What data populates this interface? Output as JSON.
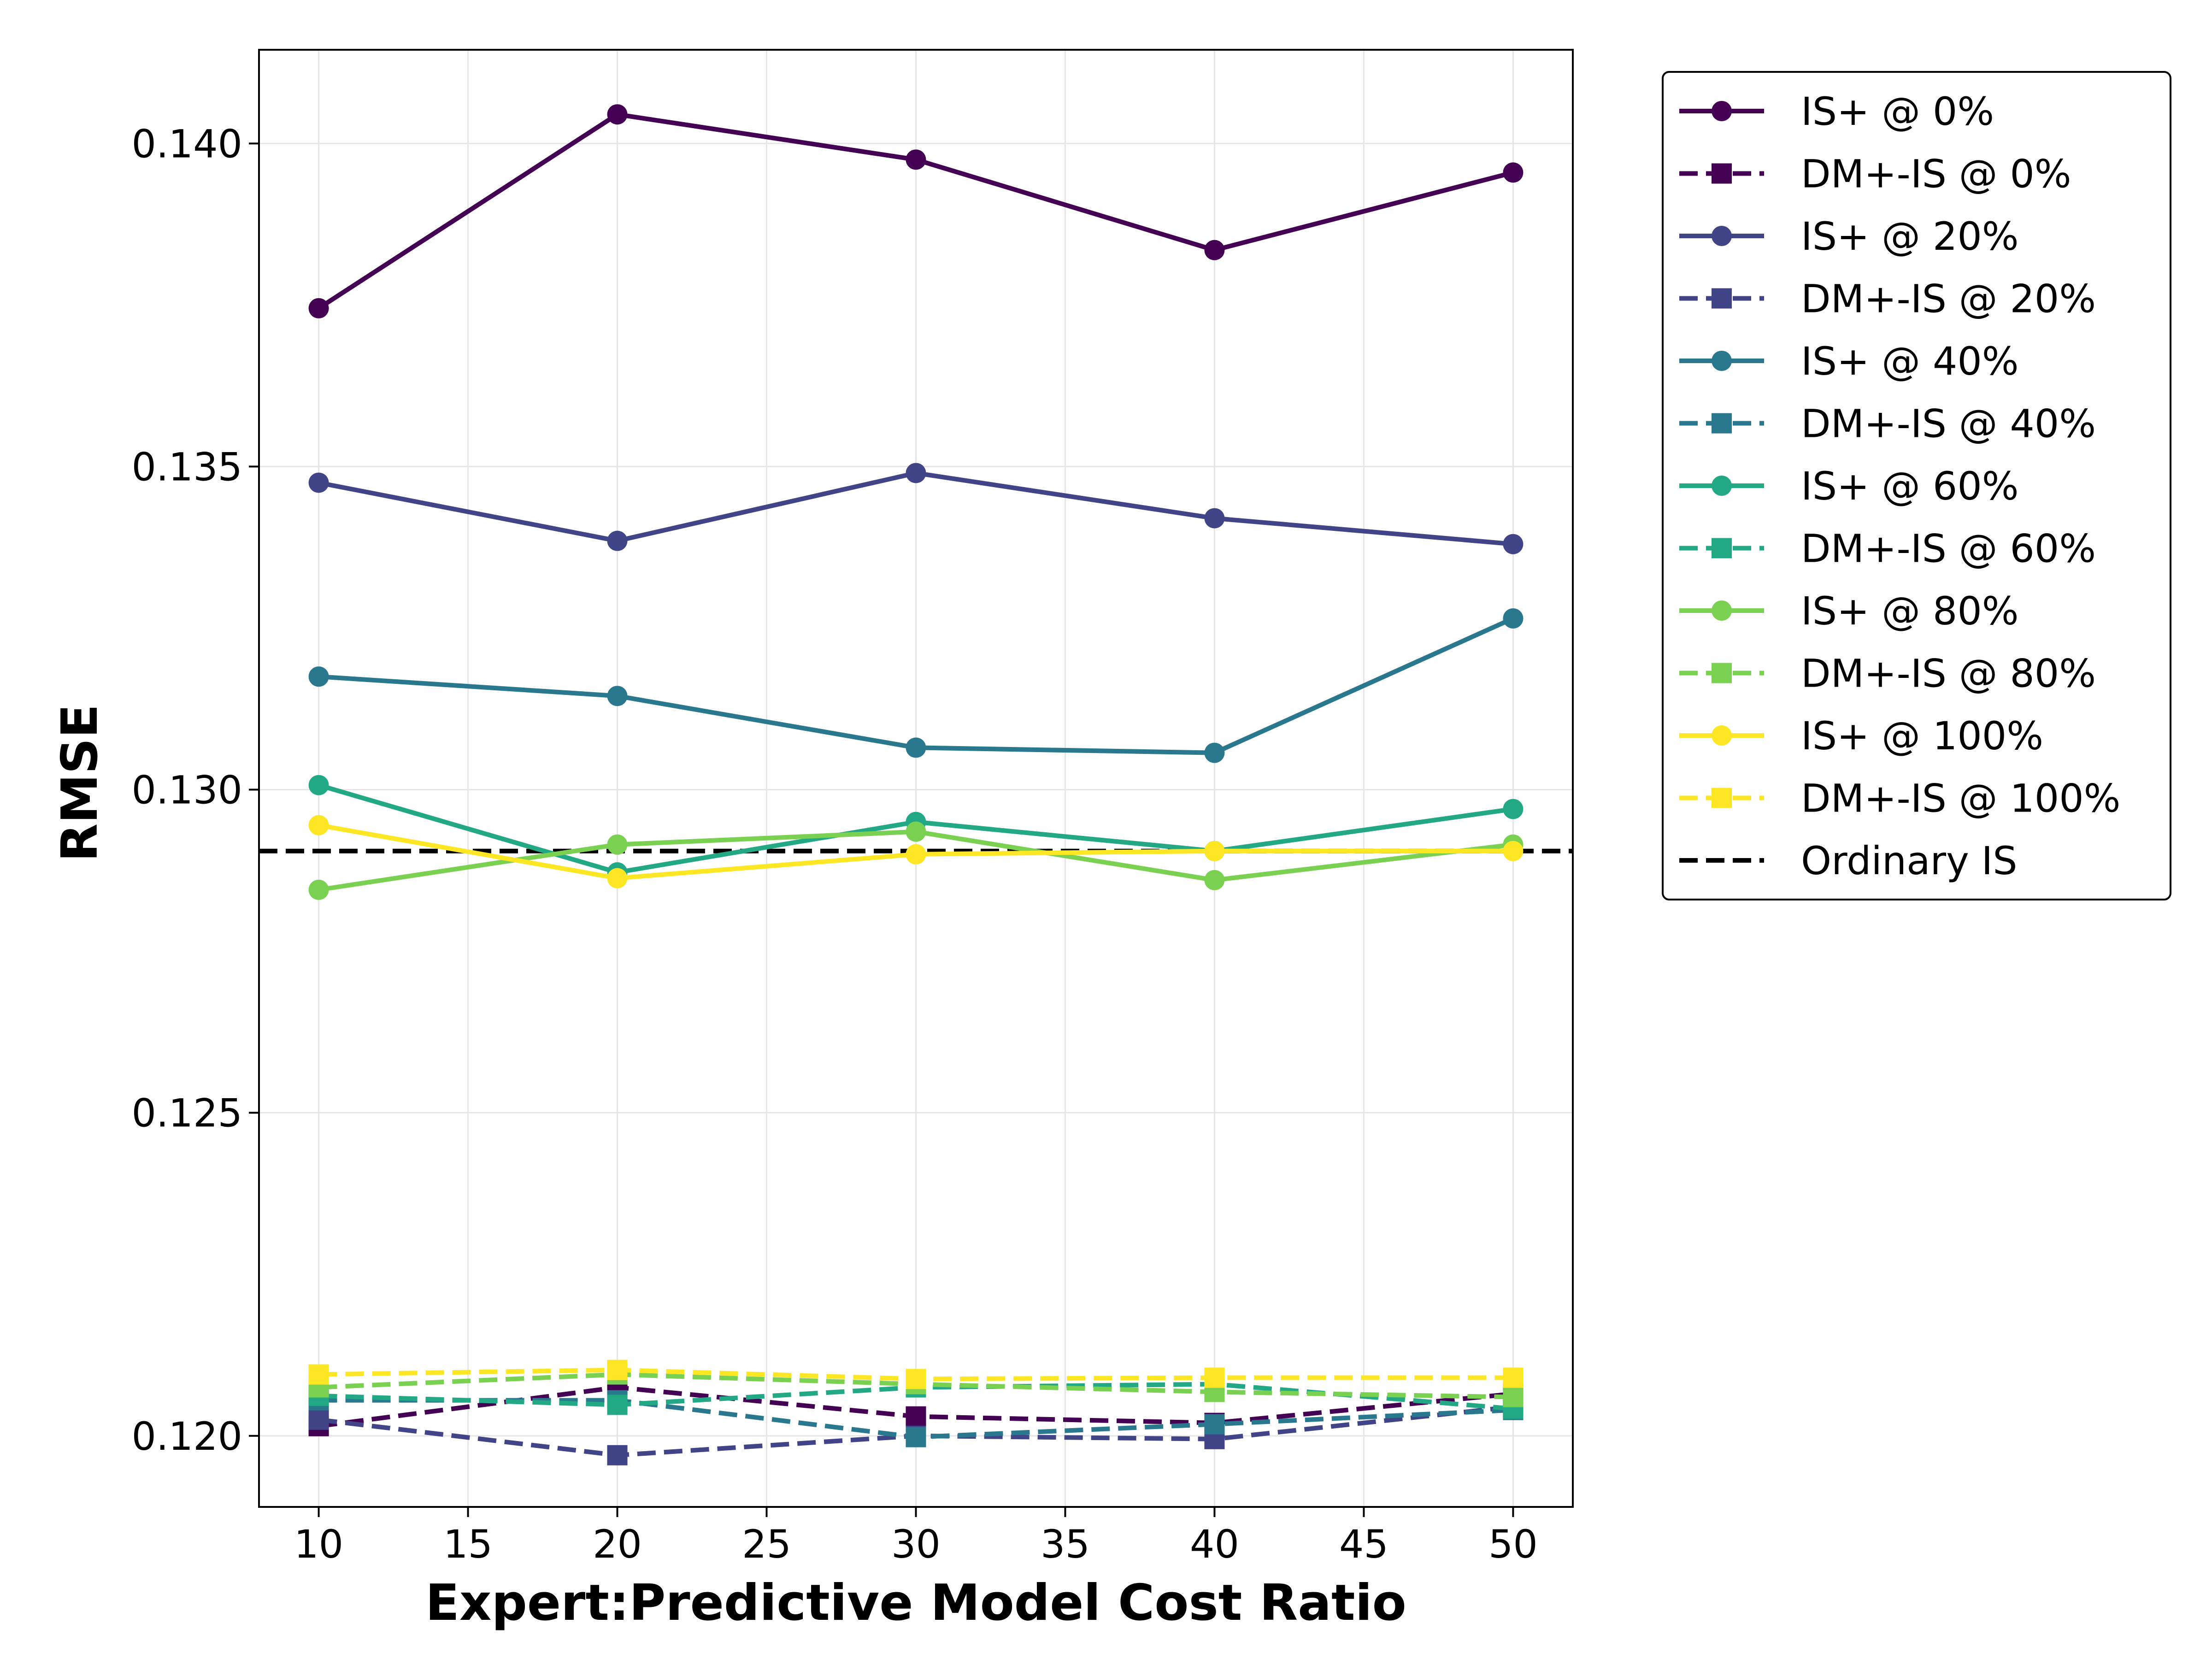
{
  "chart_data": {
    "type": "line",
    "xlabel": "Expert:Predictive Model Cost Ratio",
    "ylabel": "RMSE",
    "x": [
      10,
      20,
      30,
      40,
      50
    ],
    "xlim": [
      8,
      52
    ],
    "ylim": [
      0.1189,
      0.14145
    ],
    "xticks": [
      "10",
      "15",
      "20",
      "25",
      "30",
      "35",
      "40",
      "45",
      "50"
    ],
    "yticks": [
      "0.120",
      "0.125",
      "0.130",
      "0.135",
      "0.140"
    ],
    "grid": true,
    "legend_position": "outside-right-top",
    "series": [
      {
        "name": "IS+ @ 0%",
        "values": [
          0.13745,
          0.14045,
          0.13975,
          0.13835,
          0.13955
        ],
        "color": "#440154",
        "style": "solid",
        "marker": "circle"
      },
      {
        "name": "DM+-IS @ 0%",
        "values": [
          0.12015,
          0.12075,
          0.1203,
          0.1202,
          0.12065
        ],
        "color": "#440154",
        "style": "dashed",
        "marker": "square"
      },
      {
        "name": "IS+ @ 20%",
        "values": [
          0.13475,
          0.13385,
          0.1349,
          0.1342,
          0.1338
        ],
        "color": "#414487",
        "style": "solid",
        "marker": "circle"
      },
      {
        "name": "DM+-IS @ 20%",
        "values": [
          0.12025,
          0.1197,
          0.12,
          0.11995,
          0.12045
        ],
        "color": "#414487",
        "style": "dashed",
        "marker": "square"
      },
      {
        "name": "IS+ @ 40%",
        "values": [
          0.13175,
          0.13145,
          0.13065,
          0.13057,
          0.13265
        ],
        "color": "#2a788e",
        "style": "solid",
        "marker": "circle"
      },
      {
        "name": "DM+-IS @ 40%",
        "values": [
          0.12055,
          0.12055,
          0.11998,
          0.12018,
          0.1204
        ],
        "color": "#2a788e",
        "style": "dashed",
        "marker": "square"
      },
      {
        "name": "IS+ @ 60%",
        "values": [
          0.13007,
          0.12872,
          0.1295,
          0.12905,
          0.1297
        ],
        "color": "#22a884",
        "style": "solid",
        "marker": "circle"
      },
      {
        "name": "DM+-IS @ 60%",
        "values": [
          0.12062,
          0.12048,
          0.12075,
          0.1208,
          0.12042
        ],
        "color": "#22a884",
        "style": "dashed",
        "marker": "square"
      },
      {
        "name": "IS+ @ 80%",
        "values": [
          0.12845,
          0.12915,
          0.12935,
          0.1286,
          0.12915
        ],
        "color": "#7ad151",
        "style": "solid",
        "marker": "circle"
      },
      {
        "name": "DM+-IS @ 80%",
        "values": [
          0.12075,
          0.12095,
          0.1208,
          0.12068,
          0.1206
        ],
        "color": "#7ad151",
        "style": "dashed",
        "marker": "square"
      },
      {
        "name": "IS+ @ 100%",
        "values": [
          0.12945,
          0.12863,
          0.129,
          0.12905,
          0.12905
        ],
        "color": "#fde725",
        "style": "solid",
        "marker": "circle"
      },
      {
        "name": "DM+-IS @ 100%",
        "values": [
          0.12095,
          0.12102,
          0.12088,
          0.1209,
          0.1209
        ],
        "color": "#fde725",
        "style": "dashed",
        "marker": "square"
      }
    ],
    "reference_lines": [
      {
        "name": "Ordinary IS",
        "y": 0.12905,
        "color": "#000000",
        "style": "dashed"
      }
    ]
  }
}
